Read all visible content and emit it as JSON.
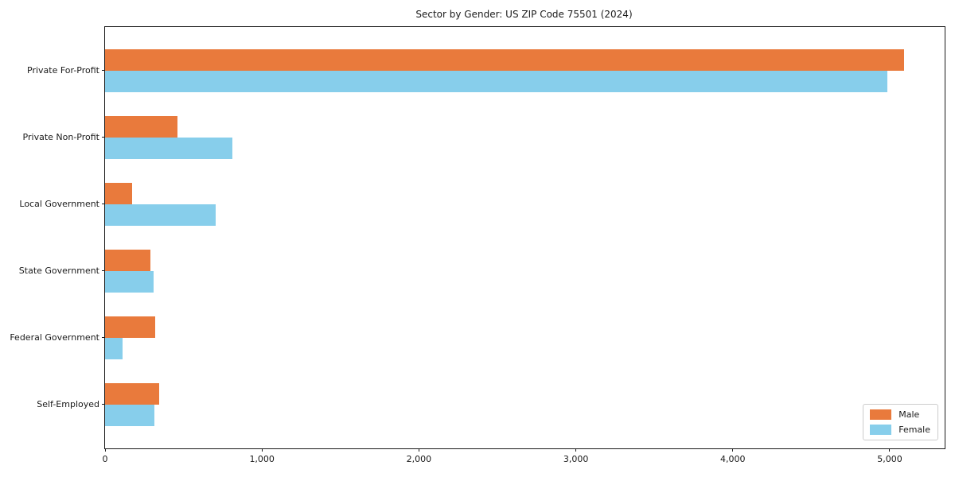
{
  "title": "Sector by Gender: US ZIP Code 75501 (2024)",
  "colors": {
    "background": "#ffffff",
    "axis": "#1a1a1a",
    "male": "#E97A3C",
    "female": "#87CEEB"
  },
  "legend": {
    "position": "lower right",
    "entries": [
      "Male",
      "Female"
    ]
  },
  "chart_data": {
    "type": "bar",
    "orientation": "horizontal",
    "title": "Sector by Gender: US ZIP Code 75501 (2024)",
    "categories": [
      "Private For-Profit",
      "Private Non-Profit",
      "Local Government",
      "State Government",
      "Federal Government",
      "Self-Employed"
    ],
    "series": [
      {
        "name": "Male",
        "color": "#E97A3C",
        "values": [
          5090,
          460,
          170,
          290,
          320,
          345
        ]
      },
      {
        "name": "Female",
        "color": "#87CEEB",
        "values": [
          4985,
          810,
          705,
          310,
          110,
          315
        ]
      }
    ],
    "xlabel": "",
    "ylabel": "",
    "xlim": [
      0,
      5350
    ],
    "xticks": [
      0,
      1000,
      2000,
      3000,
      4000,
      5000
    ],
    "xtick_labels": [
      "0",
      "1,000",
      "2,000",
      "3,000",
      "4,000",
      "5,000"
    ],
    "grid": false,
    "legend_position": "lower right"
  }
}
